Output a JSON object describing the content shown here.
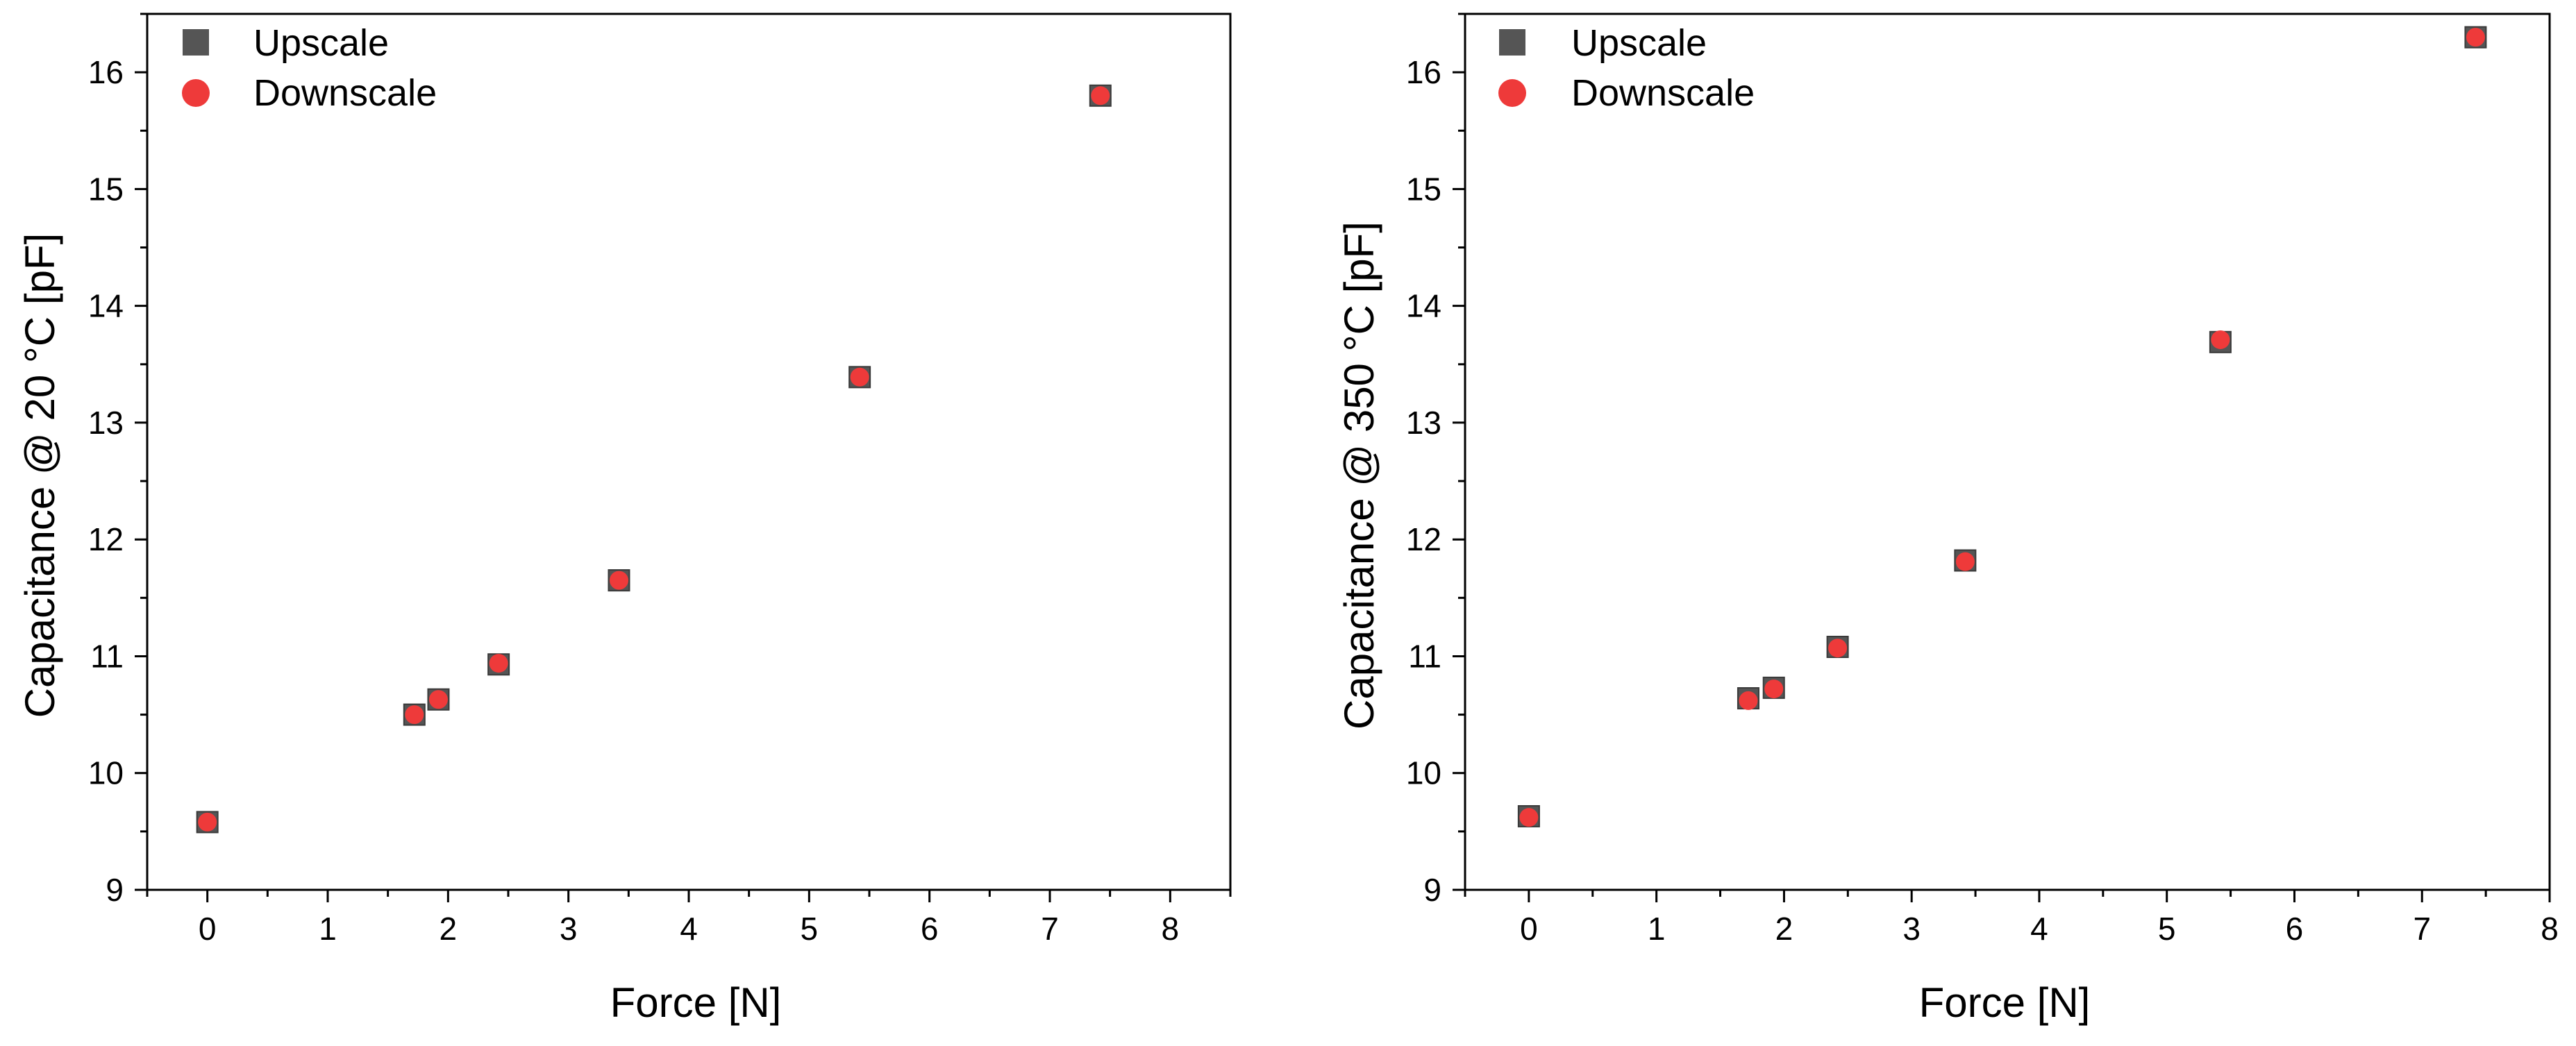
{
  "chart_data": [
    {
      "type": "scatter",
      "xlabel": "Force [N]",
      "ylabel": "Capacitance @ 20 °C [pF]",
      "xlim": [
        -0.5,
        8.5
      ],
      "ylim": [
        9,
        16.5
      ],
      "xticks": [
        "0",
        "1",
        "2",
        "3",
        "4",
        "5",
        "6",
        "7",
        "8"
      ],
      "yticks": [
        "9",
        "10",
        "11",
        "12",
        "13",
        "14",
        "15",
        "16"
      ],
      "grid": false,
      "legend_position": "top-left",
      "series": [
        {
          "name": "Upscale",
          "marker": "square",
          "color": "#555555",
          "points": [
            {
              "x": 0,
              "y": 9.58
            },
            {
              "x": 1.72,
              "y": 10.5
            },
            {
              "x": 1.92,
              "y": 10.63
            },
            {
              "x": 2.42,
              "y": 10.93
            },
            {
              "x": 3.42,
              "y": 11.65
            },
            {
              "x": 5.42,
              "y": 13.39
            },
            {
              "x": 7.42,
              "y": 15.8
            }
          ]
        },
        {
          "name": "Downscale",
          "marker": "circle",
          "color": "#ee3a3a",
          "points": [
            {
              "x": 0,
              "y": 9.58
            },
            {
              "x": 1.72,
              "y": 10.5
            },
            {
              "x": 1.92,
              "y": 10.63
            },
            {
              "x": 2.42,
              "y": 10.94
            },
            {
              "x": 3.42,
              "y": 11.65
            },
            {
              "x": 5.42,
              "y": 13.39
            },
            {
              "x": 7.42,
              "y": 15.8
            }
          ]
        }
      ]
    },
    {
      "type": "scatter",
      "xlabel": "Force [N]",
      "ylabel": "Capacitance @ 350 °C [pF]",
      "xlim": [
        -0.5,
        8
      ],
      "ylim": [
        9,
        16.5
      ],
      "xticks": [
        "0",
        "1",
        "2",
        "3",
        "4",
        "5",
        "6",
        "7",
        "8"
      ],
      "yticks": [
        "9",
        "10",
        "11",
        "12",
        "13",
        "14",
        "15",
        "16"
      ],
      "grid": false,
      "legend_position": "top-left",
      "series": [
        {
          "name": "Upscale",
          "marker": "square",
          "color": "#555555",
          "points": [
            {
              "x": 0,
              "y": 9.63
            },
            {
              "x": 1.72,
              "y": 10.64
            },
            {
              "x": 1.92,
              "y": 10.73
            },
            {
              "x": 2.42,
              "y": 11.08
            },
            {
              "x": 3.42,
              "y": 11.82
            },
            {
              "x": 5.42,
              "y": 13.69
            },
            {
              "x": 7.42,
              "y": 16.3
            }
          ]
        },
        {
          "name": "Downscale",
          "marker": "circle",
          "color": "#ee3a3a",
          "points": [
            {
              "x": 0,
              "y": 9.62
            },
            {
              "x": 1.72,
              "y": 10.62
            },
            {
              "x": 1.92,
              "y": 10.72
            },
            {
              "x": 2.42,
              "y": 11.07
            },
            {
              "x": 3.42,
              "y": 11.81
            },
            {
              "x": 5.42,
              "y": 13.71
            },
            {
              "x": 7.42,
              "y": 16.3
            }
          ]
        }
      ]
    }
  ]
}
